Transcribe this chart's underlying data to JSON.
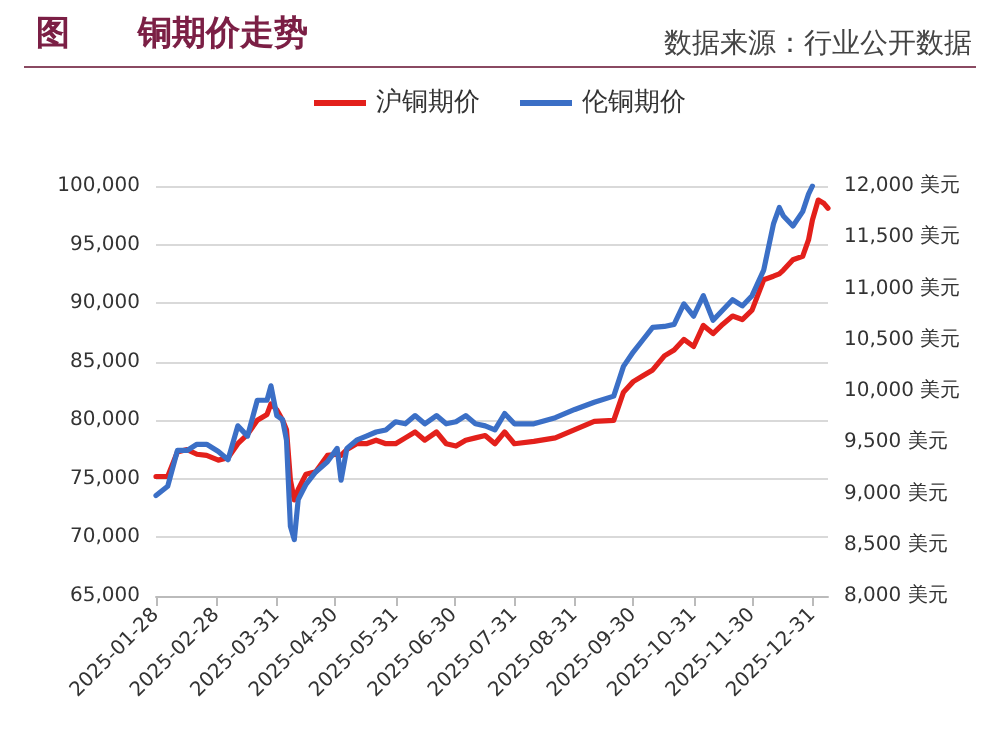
{
  "chart_data": {
    "type": "line",
    "title": "图　　铜期价走势",
    "annotations": [
      "数据来源：行业公开数据"
    ],
    "xlim": [
      "2025-01-28",
      "2026-01-08"
    ],
    "xticks": [
      "2025-01-28",
      "2025-02-28",
      "2025-03-31",
      "2025-04-30",
      "2025-05-31",
      "2025-06-30",
      "2025-07-31",
      "2025-08-31",
      "2025-09-30",
      "2025-10-31",
      "2025-11-30",
      "2025-12-31"
    ],
    "ylim": [
      65000,
      100000
    ],
    "yticks": [
      {
        "value": 65000,
        "label": "65,000"
      },
      {
        "value": 70000,
        "label": "70,000"
      },
      {
        "value": 75000,
        "label": "75,000"
      },
      {
        "value": 80000,
        "label": "80,000"
      },
      {
        "value": 85000,
        "label": "85,000"
      },
      {
        "value": 90000,
        "label": "90,000"
      },
      {
        "value": 95000,
        "label": "95,000"
      },
      {
        "value": 100000,
        "label": "100,000"
      }
    ],
    "y2lim": [
      8000,
      12000
    ],
    "y2ticks": [
      {
        "value": 8000,
        "label": "8,000 美元"
      },
      {
        "value": 8500,
        "label": "8,500 美元"
      },
      {
        "value": 9000,
        "label": "9,000 美元"
      },
      {
        "value": 9500,
        "label": "9,500 美元"
      },
      {
        "value": 10000,
        "label": "10,000 美元"
      },
      {
        "value": 10500,
        "label": "10,500 美元"
      },
      {
        "value": 11000,
        "label": "11,000 美元"
      },
      {
        "value": 11500,
        "label": "11,500 美元"
      },
      {
        "value": 12000,
        "label": "12,000 美元"
      }
    ],
    "grid": "y",
    "legend": "top",
    "marker": "none",
    "line_style": "solid",
    "series": [
      {
        "name": "沪铜期价",
        "color": "#e3201b",
        "x": [
          "2025-01-28",
          "2025-02-03",
          "2025-02-08",
          "2025-02-13",
          "2025-02-18",
          "2025-02-23",
          "2025-03-01",
          "2025-03-06",
          "2025-03-11",
          "2025-03-16",
          "2025-03-21",
          "2025-03-26",
          "2025-03-28",
          "2025-03-31",
          "2025-04-03",
          "2025-04-05",
          "2025-04-07",
          "2025-04-09",
          "2025-04-11",
          "2025-04-15",
          "2025-04-20",
          "2025-04-26",
          "2025-05-01",
          "2025-05-03",
          "2025-05-06",
          "2025-05-11",
          "2025-05-16",
          "2025-05-21",
          "2025-05-26",
          "2025-05-31",
          "2025-06-05",
          "2025-06-10",
          "2025-06-15",
          "2025-06-21",
          "2025-06-26",
          "2025-07-01",
          "2025-07-06",
          "2025-07-11",
          "2025-07-16",
          "2025-07-21",
          "2025-07-26",
          "2025-07-31",
          "2025-08-10",
          "2025-08-21",
          "2025-08-31",
          "2025-09-10",
          "2025-09-20",
          "2025-09-25",
          "2025-09-30",
          "2025-10-05",
          "2025-10-10",
          "2025-10-16",
          "2025-10-21",
          "2025-10-26",
          "2025-10-31",
          "2025-11-05",
          "2025-11-10",
          "2025-11-15",
          "2025-11-20",
          "2025-11-25",
          "2025-11-30",
          "2025-12-06",
          "2025-12-11",
          "2025-12-14",
          "2025-12-16",
          "2025-12-21",
          "2025-12-26",
          "2025-12-29",
          "2025-12-31",
          "2026-01-03",
          "2026-01-06",
          "2026-01-08"
        ],
        "values": [
          75200,
          75200,
          77300,
          77500,
          77100,
          77000,
          76600,
          76800,
          78000,
          78800,
          80000,
          80500,
          81400,
          80900,
          80000,
          79200,
          74900,
          73200,
          74100,
          75400,
          75600,
          77000,
          77100,
          77000,
          77500,
          78000,
          78000,
          78300,
          78000,
          78000,
          78500,
          79000,
          78300,
          79000,
          78000,
          77800,
          78300,
          78500,
          78700,
          78000,
          79000,
          78000,
          78200,
          78500,
          79200,
          79900,
          80000,
          82400,
          83300,
          83800,
          84300,
          85500,
          86000,
          86900,
          86300,
          88100,
          87400,
          88200,
          88900,
          88600,
          89400,
          92000,
          92300,
          92500,
          92800,
          93700,
          94000,
          95400,
          97100,
          98800,
          98500,
          98100
        ]
      },
      {
        "name": "伦铜期价",
        "color": "#3b6fc6",
        "axis": "y2",
        "x": [
          "2025-01-28",
          "2025-02-03",
          "2025-02-08",
          "2025-02-13",
          "2025-02-18",
          "2025-02-23",
          "2025-03-01",
          "2025-03-06",
          "2025-03-11",
          "2025-03-16",
          "2025-03-21",
          "2025-03-26",
          "2025-03-28",
          "2025-03-31",
          "2025-04-03",
          "2025-04-05",
          "2025-04-07",
          "2025-04-09",
          "2025-04-11",
          "2025-04-15",
          "2025-04-20",
          "2025-04-26",
          "2025-05-01",
          "2025-05-03",
          "2025-05-06",
          "2025-05-11",
          "2025-05-16",
          "2025-05-21",
          "2025-05-26",
          "2025-05-31",
          "2025-06-05",
          "2025-06-10",
          "2025-06-15",
          "2025-06-21",
          "2025-06-26",
          "2025-07-01",
          "2025-07-06",
          "2025-07-11",
          "2025-07-16",
          "2025-07-21",
          "2025-07-26",
          "2025-07-31",
          "2025-08-10",
          "2025-08-21",
          "2025-08-31",
          "2025-09-10",
          "2025-09-20",
          "2025-09-25",
          "2025-09-30",
          "2025-10-05",
          "2025-10-10",
          "2025-10-16",
          "2025-10-21",
          "2025-10-26",
          "2025-10-31",
          "2025-11-05",
          "2025-11-10",
          "2025-11-15",
          "2025-11-20",
          "2025-11-25",
          "2025-11-30",
          "2025-12-06",
          "2025-12-11",
          "2025-12-14",
          "2025-12-16",
          "2025-12-21",
          "2025-12-26",
          "2025-12-29",
          "2025-12-31"
        ],
        "values": [
          8980,
          9070,
          9420,
          9420,
          9480,
          9480,
          9410,
          9330,
          9660,
          9560,
          9910,
          9910,
          10050,
          9760,
          9720,
          9520,
          8680,
          8550,
          8940,
          9090,
          9210,
          9310,
          9440,
          9130,
          9440,
          9520,
          9560,
          9600,
          9620,
          9700,
          9680,
          9760,
          9680,
          9760,
          9680,
          9700,
          9760,
          9680,
          9660,
          9620,
          9780,
          9680,
          9680,
          9740,
          9820,
          9890,
          9950,
          10240,
          10380,
          10500,
          10620,
          10630,
          10650,
          10850,
          10730,
          10930,
          10690,
          10790,
          10890,
          10830,
          10930,
          11180,
          11630,
          11790,
          11710,
          11610,
          11750,
          11920,
          12000
        ]
      }
    ]
  }
}
